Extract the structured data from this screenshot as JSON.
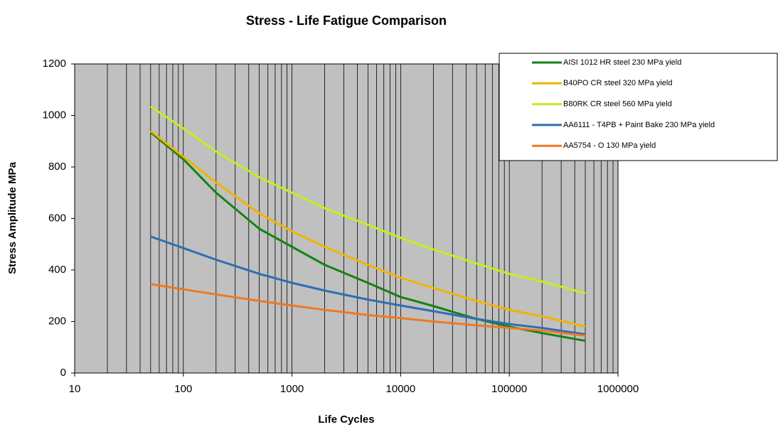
{
  "chart_data": {
    "type": "line",
    "title": "Stress - Life Fatigue Comparison",
    "xlabel": "Life Cycles",
    "ylabel": "Stress Amplitude MPa",
    "x": [
      50,
      100,
      200,
      500,
      1000,
      2000,
      5000,
      10000,
      20000,
      50000,
      100000,
      200000,
      500000
    ],
    "series": [
      {
        "name": "AISI 1012 HR steel 230 MPa yield",
        "color": "#148214",
        "values": [
          935,
          830,
          700,
          560,
          490,
          420,
          350,
          295,
          260,
          210,
          180,
          155,
          125
        ]
      },
      {
        "name": "B40PO CR steel 320 MPa yield",
        "color": "#f0b400",
        "values": [
          940,
          840,
          740,
          620,
          550,
          490,
          420,
          370,
          330,
          280,
          245,
          220,
          180
        ]
      },
      {
        "name": "B80RK CR steel 560 MPa yield",
        "color": "#c0f020",
        "values": [
          1035,
          950,
          860,
          760,
          700,
          640,
          575,
          525,
          480,
          425,
          385,
          355,
          310
        ]
      },
      {
        "name": "AA6111 - T4PB + Paint Bake 230 MPa yield",
        "color": "#2e6db4",
        "values": [
          530,
          485,
          440,
          385,
          350,
          320,
          285,
          262,
          240,
          210,
          190,
          175,
          150
        ]
      },
      {
        "name": "AA5754 - O 130 MPa yield",
        "color": "#f07820",
        "values": [
          345,
          325,
          305,
          280,
          262,
          245,
          225,
          213,
          200,
          185,
          175,
          165,
          145
        ]
      }
    ],
    "xscale": "log",
    "xlim": [
      10,
      1000000
    ],
    "xticks": [
      10,
      100,
      1000,
      10000,
      100000,
      1000000
    ],
    "ylim": [
      0,
      1200
    ],
    "yticks": [
      0,
      200,
      400,
      600,
      800,
      1000,
      1200
    ],
    "xgrid": true,
    "ygrid": false,
    "legend": "upper right"
  }
}
